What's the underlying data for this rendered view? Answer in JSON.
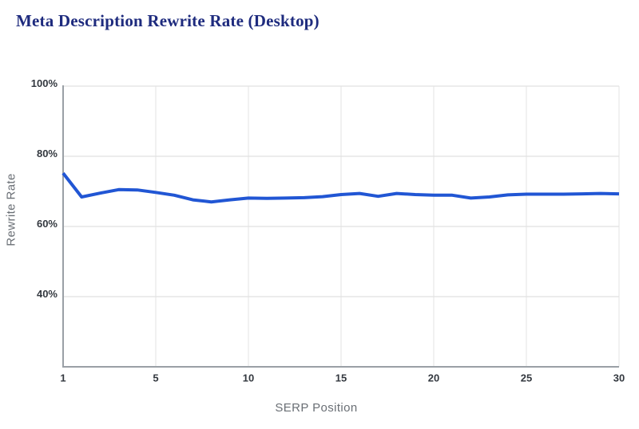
{
  "chart_data": {
    "type": "line",
    "title": "Meta Description Rewrite Rate (Desktop)",
    "xlabel": "SERP Position",
    "ylabel": "Rewrite Rate",
    "x_tick_labels": [
      "1",
      "5",
      "10",
      "15",
      "20",
      "25",
      "30"
    ],
    "x_tick_point_indices": [
      0,
      5,
      10,
      15,
      20,
      25,
      30
    ],
    "y_ticks": [
      {
        "value": 100,
        "label": "100%"
      },
      {
        "value": 80,
        "label": "80%"
      },
      {
        "value": 60,
        "label": "60%"
      },
      {
        "value": 40,
        "label": "40%"
      }
    ],
    "ylim": [
      20,
      100
    ],
    "grid": true,
    "legend": "none",
    "series": [
      {
        "name": "Rewrite Rate",
        "color": "#2156d4",
        "values": [
          75.2,
          68.4,
          69.5,
          70.5,
          70.4,
          69.7,
          68.9,
          67.6,
          67.0,
          67.6,
          68.1,
          68.0,
          68.1,
          68.2,
          68.5,
          69.1,
          69.4,
          68.6,
          69.4,
          69.1,
          68.9,
          68.9,
          68.1,
          68.4,
          69.0,
          69.2,
          69.2,
          69.2,
          69.3,
          69.4,
          69.3
        ]
      }
    ],
    "style": {
      "title_color": "#1e2b7e",
      "grid_h_color": "#d8d8d8",
      "grid_v_color": "#e3e3e3",
      "axis_color": "#9aa0a6",
      "tick_label_color": "#33383f",
      "axis_title_color": "#6a6f75",
      "background": "#ffffff"
    }
  }
}
